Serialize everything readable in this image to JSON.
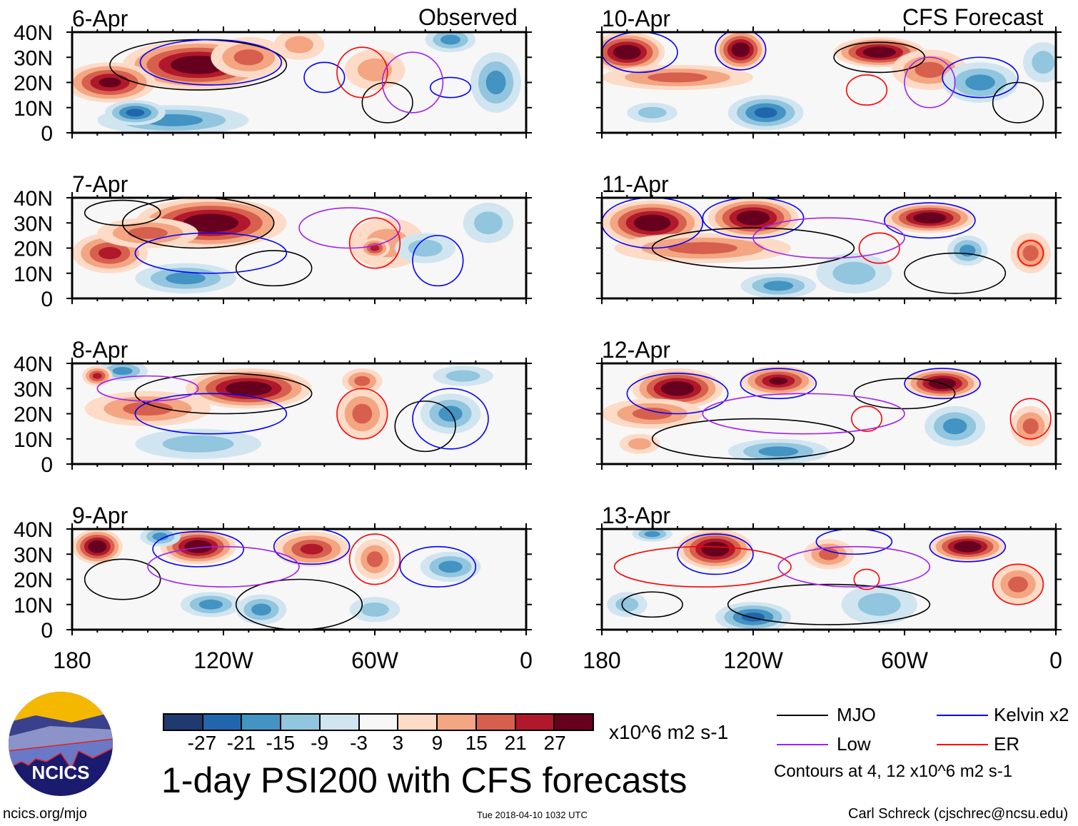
{
  "chart_data": {
    "type": "heatmap",
    "title": "1-day PSI200 with CFS forecasts",
    "units": "x10^6 m2 s-1",
    "column_titles": [
      "Observed",
      "CFS Forecast"
    ],
    "x_ticks": [
      "180",
      "120W",
      "60W",
      "0"
    ],
    "x_tick_values": [
      180,
      120,
      60,
      0
    ],
    "y_ticks": [
      "40N",
      "30N",
      "20N",
      "10N",
      "0"
    ],
    "y_tick_values": [
      40,
      30,
      20,
      10,
      0
    ],
    "xlim": [
      180,
      0
    ],
    "ylim": [
      0,
      40
    ],
    "colorbar": {
      "labels": [
        "-27",
        "-21",
        "-15",
        "-9",
        "-3",
        "3",
        "9",
        "15",
        "21",
        "27"
      ],
      "colors": [
        "#1f3a6e",
        "#2166ac",
        "#4393c3",
        "#92c5de",
        "#d1e5f0",
        "#f7f7f7",
        "#fddbc7",
        "#f4a582",
        "#d6604d",
        "#b2182b",
        "#67001f"
      ]
    },
    "legend": [
      {
        "label": "MJO",
        "color": "#000000"
      },
      {
        "label": "Kelvin x2",
        "color": "#0000ff"
      },
      {
        "label": "Low",
        "color": "#a020f0"
      },
      {
        "label": "ER",
        "color": "#ff0000"
      }
    ],
    "contour_note": "Contours at 4, 12 x10^6 m2 s-1",
    "panels": [
      {
        "date": "6-Apr",
        "column": 0,
        "row": 0,
        "anomalies": [
          [
            130,
            27,
            30,
            10,
            30
          ],
          [
            165,
            20,
            18,
            8,
            22
          ],
          [
            110,
            30,
            15,
            8,
            15
          ],
          [
            140,
            5,
            30,
            6,
            -12
          ],
          [
            155,
            8,
            12,
            5,
            -20
          ],
          [
            12,
            20,
            10,
            12,
            -15
          ],
          [
            30,
            37,
            10,
            5,
            -12
          ],
          [
            60,
            25,
            12,
            8,
            6
          ],
          [
            90,
            35,
            10,
            6,
            8
          ]
        ],
        "contours": [
          [
            130,
            27,
            35,
            10,
            "mjo"
          ],
          [
            125,
            28,
            28,
            9,
            "kelvin"
          ],
          [
            80,
            22,
            8,
            6,
            "kelvin"
          ],
          [
            30,
            18,
            8,
            4,
            "kelvin"
          ],
          [
            55,
            12,
            10,
            8,
            "mjo"
          ],
          [
            65,
            24,
            10,
            10,
            "er"
          ],
          [
            45,
            20,
            12,
            12,
            "low"
          ]
        ]
      },
      {
        "date": "7-Apr",
        "column": 0,
        "row": 1,
        "anomalies": [
          [
            125,
            30,
            30,
            10,
            30
          ],
          [
            165,
            18,
            15,
            8,
            20
          ],
          [
            150,
            26,
            20,
            6,
            12
          ],
          [
            135,
            8,
            20,
            6,
            -10
          ],
          [
            55,
            22,
            15,
            10,
            8
          ],
          [
            60,
            20,
            6,
            4,
            18
          ],
          [
            40,
            20,
            12,
            6,
            -8
          ],
          [
            15,
            30,
            10,
            8,
            -8
          ]
        ],
        "contours": [
          [
            130,
            30,
            30,
            10,
            "mjo"
          ],
          [
            160,
            34,
            15,
            5,
            "mjo"
          ],
          [
            60,
            22,
            10,
            10,
            "er"
          ],
          [
            100,
            12,
            15,
            7,
            "mjo"
          ],
          [
            35,
            15,
            10,
            10,
            "kelvin"
          ],
          [
            125,
            18,
            30,
            8,
            "kelvin"
          ],
          [
            70,
            28,
            20,
            8,
            "low"
          ]
        ]
      },
      {
        "date": "8-Apr",
        "column": 0,
        "row": 2,
        "anomalies": [
          [
            110,
            30,
            25,
            8,
            28
          ],
          [
            150,
            22,
            25,
            7,
            12
          ],
          [
            160,
            37,
            10,
            4,
            -12
          ],
          [
            65,
            20,
            10,
            10,
            15
          ],
          [
            65,
            33,
            8,
            5,
            12
          ],
          [
            130,
            8,
            25,
            6,
            -8
          ],
          [
            30,
            20,
            12,
            8,
            -10
          ],
          [
            25,
            35,
            12,
            4,
            -6
          ],
          [
            170,
            35,
            6,
            4,
            20
          ]
        ],
        "contours": [
          [
            120,
            28,
            35,
            8,
            "mjo"
          ],
          [
            65,
            20,
            10,
            10,
            "er"
          ],
          [
            40,
            15,
            12,
            10,
            "mjo"
          ],
          [
            125,
            20,
            30,
            8,
            "kelvin"
          ],
          [
            30,
            18,
            15,
            12,
            "kelvin"
          ],
          [
            150,
            30,
            20,
            5,
            "low"
          ]
        ]
      },
      {
        "date": "9-Apr",
        "column": 0,
        "row": 3,
        "anomalies": [
          [
            170,
            33,
            10,
            7,
            28
          ],
          [
            130,
            33,
            15,
            7,
            28
          ],
          [
            85,
            32,
            15,
            7,
            20
          ],
          [
            60,
            28,
            8,
            8,
            10
          ],
          [
            145,
            37,
            8,
            4,
            -12
          ],
          [
            30,
            25,
            12,
            6,
            -15
          ],
          [
            105,
            8,
            10,
            6,
            -15
          ],
          [
            125,
            10,
            12,
            5,
            -10
          ],
          [
            60,
            8,
            10,
            5,
            -8
          ]
        ],
        "contours": [
          [
            130,
            32,
            18,
            7,
            "kelvin"
          ],
          [
            85,
            33,
            15,
            7,
            "kelvin"
          ],
          [
            35,
            25,
            15,
            8,
            "kelvin"
          ],
          [
            90,
            10,
            25,
            10,
            "mjo"
          ],
          [
            160,
            20,
            15,
            8,
            "mjo"
          ],
          [
            60,
            28,
            10,
            10,
            "er"
          ],
          [
            120,
            25,
            30,
            8,
            "low"
          ]
        ]
      },
      {
        "date": "10-Apr",
        "column": 1,
        "row": 0,
        "anomalies": [
          [
            170,
            32,
            15,
            8,
            30
          ],
          [
            125,
            33,
            10,
            8,
            28
          ],
          [
            70,
            32,
            18,
            6,
            28
          ],
          [
            150,
            22,
            30,
            5,
            10
          ],
          [
            50,
            25,
            15,
            8,
            12
          ],
          [
            115,
            8,
            15,
            7,
            -20
          ],
          [
            30,
            20,
            15,
            8,
            -15
          ],
          [
            160,
            8,
            10,
            4,
            -8
          ],
          [
            5,
            28,
            8,
            8,
            -8
          ]
        ],
        "contours": [
          [
            165,
            32,
            15,
            8,
            "kelvin"
          ],
          [
            125,
            33,
            10,
            8,
            "kelvin"
          ],
          [
            70,
            30,
            18,
            6,
            "mjo"
          ],
          [
            75,
            17,
            8,
            6,
            "er"
          ],
          [
            30,
            22,
            15,
            8,
            "kelvin"
          ],
          [
            50,
            20,
            10,
            10,
            "low"
          ],
          [
            15,
            12,
            10,
            8,
            "mjo"
          ]
        ]
      },
      {
        "date": "11-Apr",
        "column": 1,
        "row": 1,
        "anomalies": [
          [
            160,
            30,
            20,
            9,
            30
          ],
          [
            120,
            32,
            18,
            8,
            28
          ],
          [
            50,
            32,
            18,
            6,
            28
          ],
          [
            140,
            20,
            35,
            6,
            12
          ],
          [
            110,
            5,
            15,
            5,
            -15
          ],
          [
            35,
            19,
            8,
            6,
            -12
          ],
          [
            10,
            18,
            8,
            8,
            10
          ],
          [
            80,
            10,
            15,
            8,
            -8
          ]
        ],
        "contours": [
          [
            160,
            30,
            20,
            10,
            "kelvin"
          ],
          [
            120,
            32,
            20,
            8,
            "kelvin"
          ],
          [
            50,
            31,
            18,
            7,
            "kelvin"
          ],
          [
            70,
            20,
            8,
            6,
            "er"
          ],
          [
            10,
            18,
            5,
            5,
            "er"
          ],
          [
            120,
            20,
            40,
            8,
            "mjo"
          ],
          [
            40,
            10,
            20,
            8,
            "mjo"
          ],
          [
            90,
            24,
            30,
            8,
            "low"
          ]
        ]
      },
      {
        "date": "12-Apr",
        "column": 1,
        "row": 2,
        "anomalies": [
          [
            150,
            30,
            18,
            8,
            30
          ],
          [
            110,
            33,
            15,
            6,
            25
          ],
          [
            45,
            32,
            15,
            6,
            30
          ],
          [
            160,
            20,
            20,
            6,
            12
          ],
          [
            110,
            5,
            20,
            5,
            -15
          ],
          [
            40,
            15,
            12,
            8,
            -10
          ],
          [
            10,
            15,
            8,
            8,
            10
          ],
          [
            165,
            8,
            8,
            4,
            8
          ]
        ],
        "contours": [
          [
            150,
            28,
            20,
            8,
            "kelvin"
          ],
          [
            110,
            32,
            15,
            6,
            "kelvin"
          ],
          [
            45,
            32,
            15,
            6,
            "kelvin"
          ],
          [
            75,
            18,
            6,
            5,
            "er"
          ],
          [
            10,
            18,
            8,
            8,
            "er"
          ],
          [
            60,
            28,
            20,
            6,
            "mjo"
          ],
          [
            120,
            10,
            40,
            8,
            "mjo"
          ],
          [
            100,
            20,
            40,
            8,
            "low"
          ]
        ]
      },
      {
        "date": "13-Apr",
        "column": 1,
        "row": 3,
        "anomalies": [
          [
            135,
            32,
            15,
            8,
            30
          ],
          [
            35,
            33,
            15,
            6,
            30
          ],
          [
            90,
            30,
            10,
            6,
            12
          ],
          [
            160,
            38,
            8,
            3,
            -10
          ],
          [
            120,
            5,
            15,
            6,
            -20
          ],
          [
            70,
            10,
            15,
            8,
            -8
          ],
          [
            15,
            18,
            10,
            8,
            12
          ],
          [
            170,
            10,
            8,
            5,
            -8
          ]
        ],
        "contours": [
          [
            135,
            30,
            15,
            8,
            "kelvin"
          ],
          [
            35,
            33,
            15,
            6,
            "kelvin"
          ],
          [
            80,
            35,
            15,
            5,
            "kelvin"
          ],
          [
            15,
            18,
            10,
            8,
            "er"
          ],
          [
            75,
            20,
            5,
            4,
            "er"
          ],
          [
            140,
            25,
            35,
            8,
            "er"
          ],
          [
            90,
            10,
            40,
            8,
            "mjo"
          ],
          [
            160,
            10,
            12,
            5,
            "mjo"
          ],
          [
            80,
            25,
            30,
            8,
            "low"
          ]
        ]
      }
    ]
  },
  "footer": {
    "logo_text": "NCICS",
    "url": "ncics.org/mjo",
    "timestamp": "Tue 2018-04-10 1032 UTC",
    "credit": "Carl Schreck (cjschrec@ncsu.edu)"
  }
}
